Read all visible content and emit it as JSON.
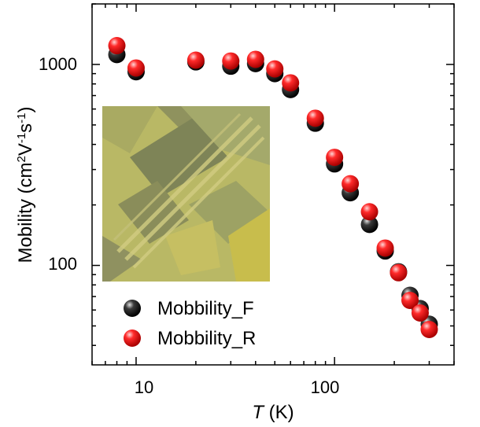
{
  "chart_data": {
    "type": "scatter",
    "xscale": "log",
    "yscale": "log",
    "xlim": [
      6,
      400
    ],
    "ylim": [
      32,
      2000
    ],
    "xlabel_italic": "T",
    "xlabel_rest": " (K)",
    "ylabel": "Mobility (cm2V-1s-1)",
    "x_major_ticks": [
      10,
      100
    ],
    "x_major_tick_labels": [
      "10",
      "100"
    ],
    "y_major_ticks": [
      100,
      1000
    ],
    "y_major_tick_labels": [
      "100",
      "1000"
    ],
    "legend_position": "bottom-left",
    "inset": "optical micrograph of device (top-left, inside plot)",
    "series": [
      {
        "name": "Mobbility_F",
        "color": "#000000",
        "x": [
          8,
          10,
          20,
          30,
          40,
          50,
          60,
          80,
          100,
          120,
          150,
          180,
          210,
          240,
          270,
          300
        ],
        "y": [
          1120,
          920,
          1030,
          980,
          1010,
          900,
          750,
          510,
          320,
          230,
          160,
          118,
          93,
          71,
          61,
          51
        ]
      },
      {
        "name": "Mobbility_R",
        "color": "#e8000a",
        "x": [
          8,
          10,
          20,
          30,
          40,
          50,
          60,
          80,
          100,
          120,
          150,
          180,
          210,
          240,
          270,
          300
        ],
        "y": [
          1240,
          960,
          1050,
          1040,
          1060,
          950,
          810,
          540,
          345,
          255,
          185,
          122,
          92,
          67,
          58,
          48
        ]
      }
    ]
  }
}
